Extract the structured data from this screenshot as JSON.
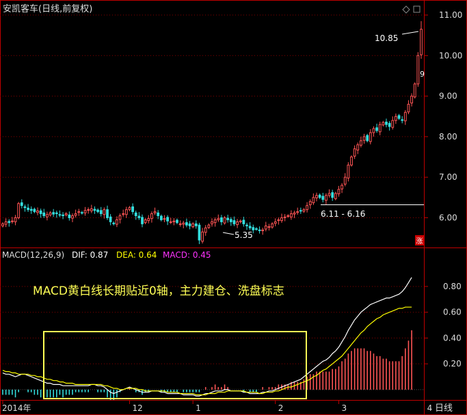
{
  "header": {
    "title": "安凯客车(日线,前复权)",
    "icons": [
      "diamond-icon",
      "square-icon"
    ]
  },
  "price_panel": {
    "annotations": {
      "high": "10.85",
      "low": "5.35",
      "range": "6.11 - 6.16",
      "cut_label": "9"
    },
    "badge": "涨"
  },
  "macd_panel": {
    "indicator": "MACD(12,26,9)",
    "dif_label": "DIF: 0.87",
    "dea_label": "DEA: 0.64",
    "macd_label": "MACD: 0.45",
    "annotation": "MACD黄白线长期贴近0轴，主力建仓、洗盘标志"
  },
  "period_button": "日线",
  "colors": {
    "up": "#ff5555",
    "down": "#33dddd",
    "dif": "#ffffff",
    "dea": "#ffff00",
    "macd_label": "#ff33ff",
    "grid": "#880000",
    "axis": "#c00000",
    "box": "#ffff55"
  },
  "chart_data": [
    {
      "type": "candlestick",
      "title": "安凯客车(日线,前复权)",
      "ylim": [
        5.3,
        11.0
      ],
      "y_ticks": [
        "6.00",
        "7.00",
        "8.00",
        "9.00",
        "10.00",
        "11.00"
      ],
      "x_ticks": [
        "2014年",
        "12",
        "1",
        "2",
        "3",
        "4"
      ],
      "x_tick_positions": [
        0,
        40,
        60,
        86,
        106,
        133
      ],
      "closes": [
        5.85,
        5.9,
        5.88,
        5.92,
        6.0,
        6.35,
        6.3,
        6.25,
        6.2,
        6.18,
        6.15,
        6.17,
        6.1,
        6.05,
        6.08,
        6.12,
        6.09,
        6.1,
        6.07,
        6.05,
        6.1,
        6.0,
        6.05,
        6.1,
        6.15,
        6.12,
        6.18,
        6.2,
        6.22,
        6.18,
        6.15,
        6.1,
        6.2,
        6.0,
        5.9,
        5.85,
        5.95,
        6.05,
        6.1,
        6.2,
        6.25,
        6.15,
        6.05,
        6.0,
        5.85,
        5.95,
        5.98,
        6.1,
        6.15,
        6.05,
        5.95,
        5.98,
        5.92,
        5.9,
        5.92,
        5.88,
        5.85,
        5.87,
        5.82,
        5.8,
        5.85,
        5.8,
        5.45,
        5.65,
        5.75,
        5.82,
        5.9,
        5.95,
        5.98,
        5.9,
        6.0,
        5.95,
        5.9,
        5.85,
        5.9,
        5.92,
        5.85,
        5.8,
        5.75,
        5.7,
        5.72,
        5.68,
        5.7,
        5.8,
        5.78,
        5.85,
        5.9,
        5.95,
        6.0,
        6.02,
        6.05,
        6.1,
        6.12,
        6.15,
        6.18,
        6.2,
        6.3,
        6.4,
        6.5,
        6.55,
        6.5,
        6.45,
        6.55,
        6.6,
        6.5,
        6.6,
        6.7,
        6.8,
        7.0,
        7.3,
        7.5,
        7.7,
        7.8,
        7.9,
        8.0,
        7.9,
        8.1,
        8.2,
        8.15,
        8.3,
        8.35,
        8.3,
        8.25,
        8.4,
        8.5,
        8.45,
        8.4,
        8.6,
        8.8,
        9.0,
        9.3,
        10.0,
        10.65
      ],
      "high": 10.85,
      "low": 5.35
    },
    {
      "type": "line",
      "title": "MACD(12,26,9)",
      "ylim": [
        -0.08,
        0.98
      ],
      "y_ticks": [
        "0.20",
        "0.40",
        "0.60",
        "0.80"
      ],
      "series": [
        {
          "name": "DIF",
          "values": [
            0.13,
            0.12,
            0.12,
            0.11,
            0.1,
            0.11,
            0.12,
            0.12,
            0.11,
            0.1,
            0.09,
            0.08,
            0.07,
            0.06,
            0.05,
            0.05,
            0.04,
            0.04,
            0.04,
            0.03,
            0.03,
            0.03,
            0.03,
            0.03,
            0.03,
            0.03,
            0.03,
            0.03,
            0.04,
            0.04,
            0.03,
            0.03,
            0.02,
            0.0,
            -0.02,
            -0.03,
            -0.02,
            -0.01,
            0.0,
            0.01,
            0.02,
            0.01,
            0.0,
            -0.01,
            -0.02,
            -0.02,
            -0.02,
            -0.01,
            -0.01,
            -0.01,
            -0.02,
            -0.02,
            -0.03,
            -0.03,
            -0.03,
            -0.03,
            -0.03,
            -0.04,
            -0.04,
            -0.04,
            -0.04,
            -0.05,
            -0.05,
            -0.04,
            -0.03,
            -0.03,
            -0.02,
            -0.01,
            -0.01,
            -0.01,
            0.0,
            0.0,
            -0.01,
            -0.01,
            -0.01,
            -0.01,
            -0.02,
            -0.02,
            -0.03,
            -0.03,
            -0.03,
            -0.03,
            -0.02,
            -0.02,
            -0.01,
            -0.01,
            0.0,
            0.01,
            0.02,
            0.03,
            0.04,
            0.05,
            0.06,
            0.07,
            0.08,
            0.1,
            0.12,
            0.14,
            0.16,
            0.18,
            0.2,
            0.22,
            0.23,
            0.25,
            0.28,
            0.3,
            0.33,
            0.37,
            0.41,
            0.46,
            0.5,
            0.54,
            0.57,
            0.6,
            0.62,
            0.64,
            0.66,
            0.67,
            0.68,
            0.69,
            0.7,
            0.71,
            0.71,
            0.72,
            0.73,
            0.74,
            0.76,
            0.79,
            0.83,
            0.87
          ]
        },
        {
          "name": "DEA",
          "values": [
            0.15,
            0.14,
            0.14,
            0.13,
            0.13,
            0.12,
            0.12,
            0.12,
            0.12,
            0.11,
            0.11,
            0.1,
            0.1,
            0.09,
            0.08,
            0.08,
            0.07,
            0.07,
            0.06,
            0.06,
            0.05,
            0.05,
            0.05,
            0.04,
            0.04,
            0.04,
            0.04,
            0.04,
            0.04,
            0.04,
            0.04,
            0.04,
            0.03,
            0.03,
            0.02,
            0.01,
            0.01,
            0.0,
            0.0,
            0.01,
            0.01,
            0.01,
            0.01,
            0.0,
            0.0,
            -0.01,
            -0.01,
            -0.01,
            -0.01,
            -0.01,
            -0.01,
            -0.01,
            -0.02,
            -0.02,
            -0.02,
            -0.02,
            -0.03,
            -0.03,
            -0.03,
            -0.03,
            -0.03,
            -0.04,
            -0.04,
            -0.04,
            -0.04,
            -0.03,
            -0.03,
            -0.03,
            -0.02,
            -0.02,
            -0.02,
            -0.01,
            -0.01,
            -0.01,
            -0.01,
            -0.01,
            -0.01,
            -0.02,
            -0.02,
            -0.02,
            -0.02,
            -0.03,
            -0.03,
            -0.02,
            -0.02,
            -0.02,
            -0.01,
            -0.01,
            0.0,
            0.01,
            0.02,
            0.02,
            0.03,
            0.04,
            0.05,
            0.06,
            0.07,
            0.08,
            0.1,
            0.11,
            0.13,
            0.15,
            0.16,
            0.18,
            0.2,
            0.22,
            0.24,
            0.26,
            0.29,
            0.32,
            0.35,
            0.38,
            0.41,
            0.44,
            0.46,
            0.49,
            0.51,
            0.53,
            0.55,
            0.56,
            0.58,
            0.59,
            0.6,
            0.61,
            0.62,
            0.63,
            0.63,
            0.64,
            0.64,
            0.64
          ]
        },
        {
          "name": "MACD",
          "values": [
            -0.04,
            -0.04,
            -0.04,
            -0.04,
            -0.06,
            -0.02,
            0.0,
            0.0,
            -0.02,
            -0.02,
            -0.04,
            -0.04,
            -0.06,
            -0.06,
            -0.06,
            -0.06,
            -0.06,
            -0.06,
            -0.04,
            -0.06,
            -0.04,
            -0.04,
            -0.04,
            -0.02,
            -0.02,
            -0.02,
            -0.02,
            -0.02,
            0.0,
            0.0,
            -0.02,
            -0.02,
            -0.02,
            -0.06,
            -0.08,
            -0.08,
            -0.06,
            -0.02,
            0.0,
            0.0,
            0.02,
            0.0,
            -0.02,
            -0.02,
            -0.04,
            -0.02,
            -0.02,
            0.0,
            0.0,
            0.0,
            -0.02,
            -0.02,
            -0.02,
            -0.02,
            -0.02,
            -0.02,
            0.0,
            -0.02,
            -0.02,
            -0.02,
            -0.02,
            -0.02,
            -0.02,
            0.0,
            0.02,
            0.0,
            0.02,
            0.04,
            0.02,
            0.02,
            0.04,
            0.02,
            0.0,
            0.0,
            0.0,
            0.0,
            -0.02,
            0.0,
            -0.02,
            -0.02,
            -0.02,
            0.0,
            0.02,
            0.0,
            0.02,
            0.02,
            0.02,
            0.04,
            0.04,
            0.04,
            0.04,
            0.06,
            0.06,
            0.06,
            0.06,
            0.08,
            0.1,
            0.12,
            0.12,
            0.14,
            0.14,
            0.14,
            0.14,
            0.14,
            0.16,
            0.16,
            0.18,
            0.22,
            0.24,
            0.28,
            0.3,
            0.32,
            0.32,
            0.32,
            0.32,
            0.3,
            0.3,
            0.28,
            0.26,
            0.26,
            0.24,
            0.24,
            0.22,
            0.22,
            0.22,
            0.22,
            0.26,
            0.32,
            0.38,
            0.46
          ]
        }
      ]
    }
  ]
}
